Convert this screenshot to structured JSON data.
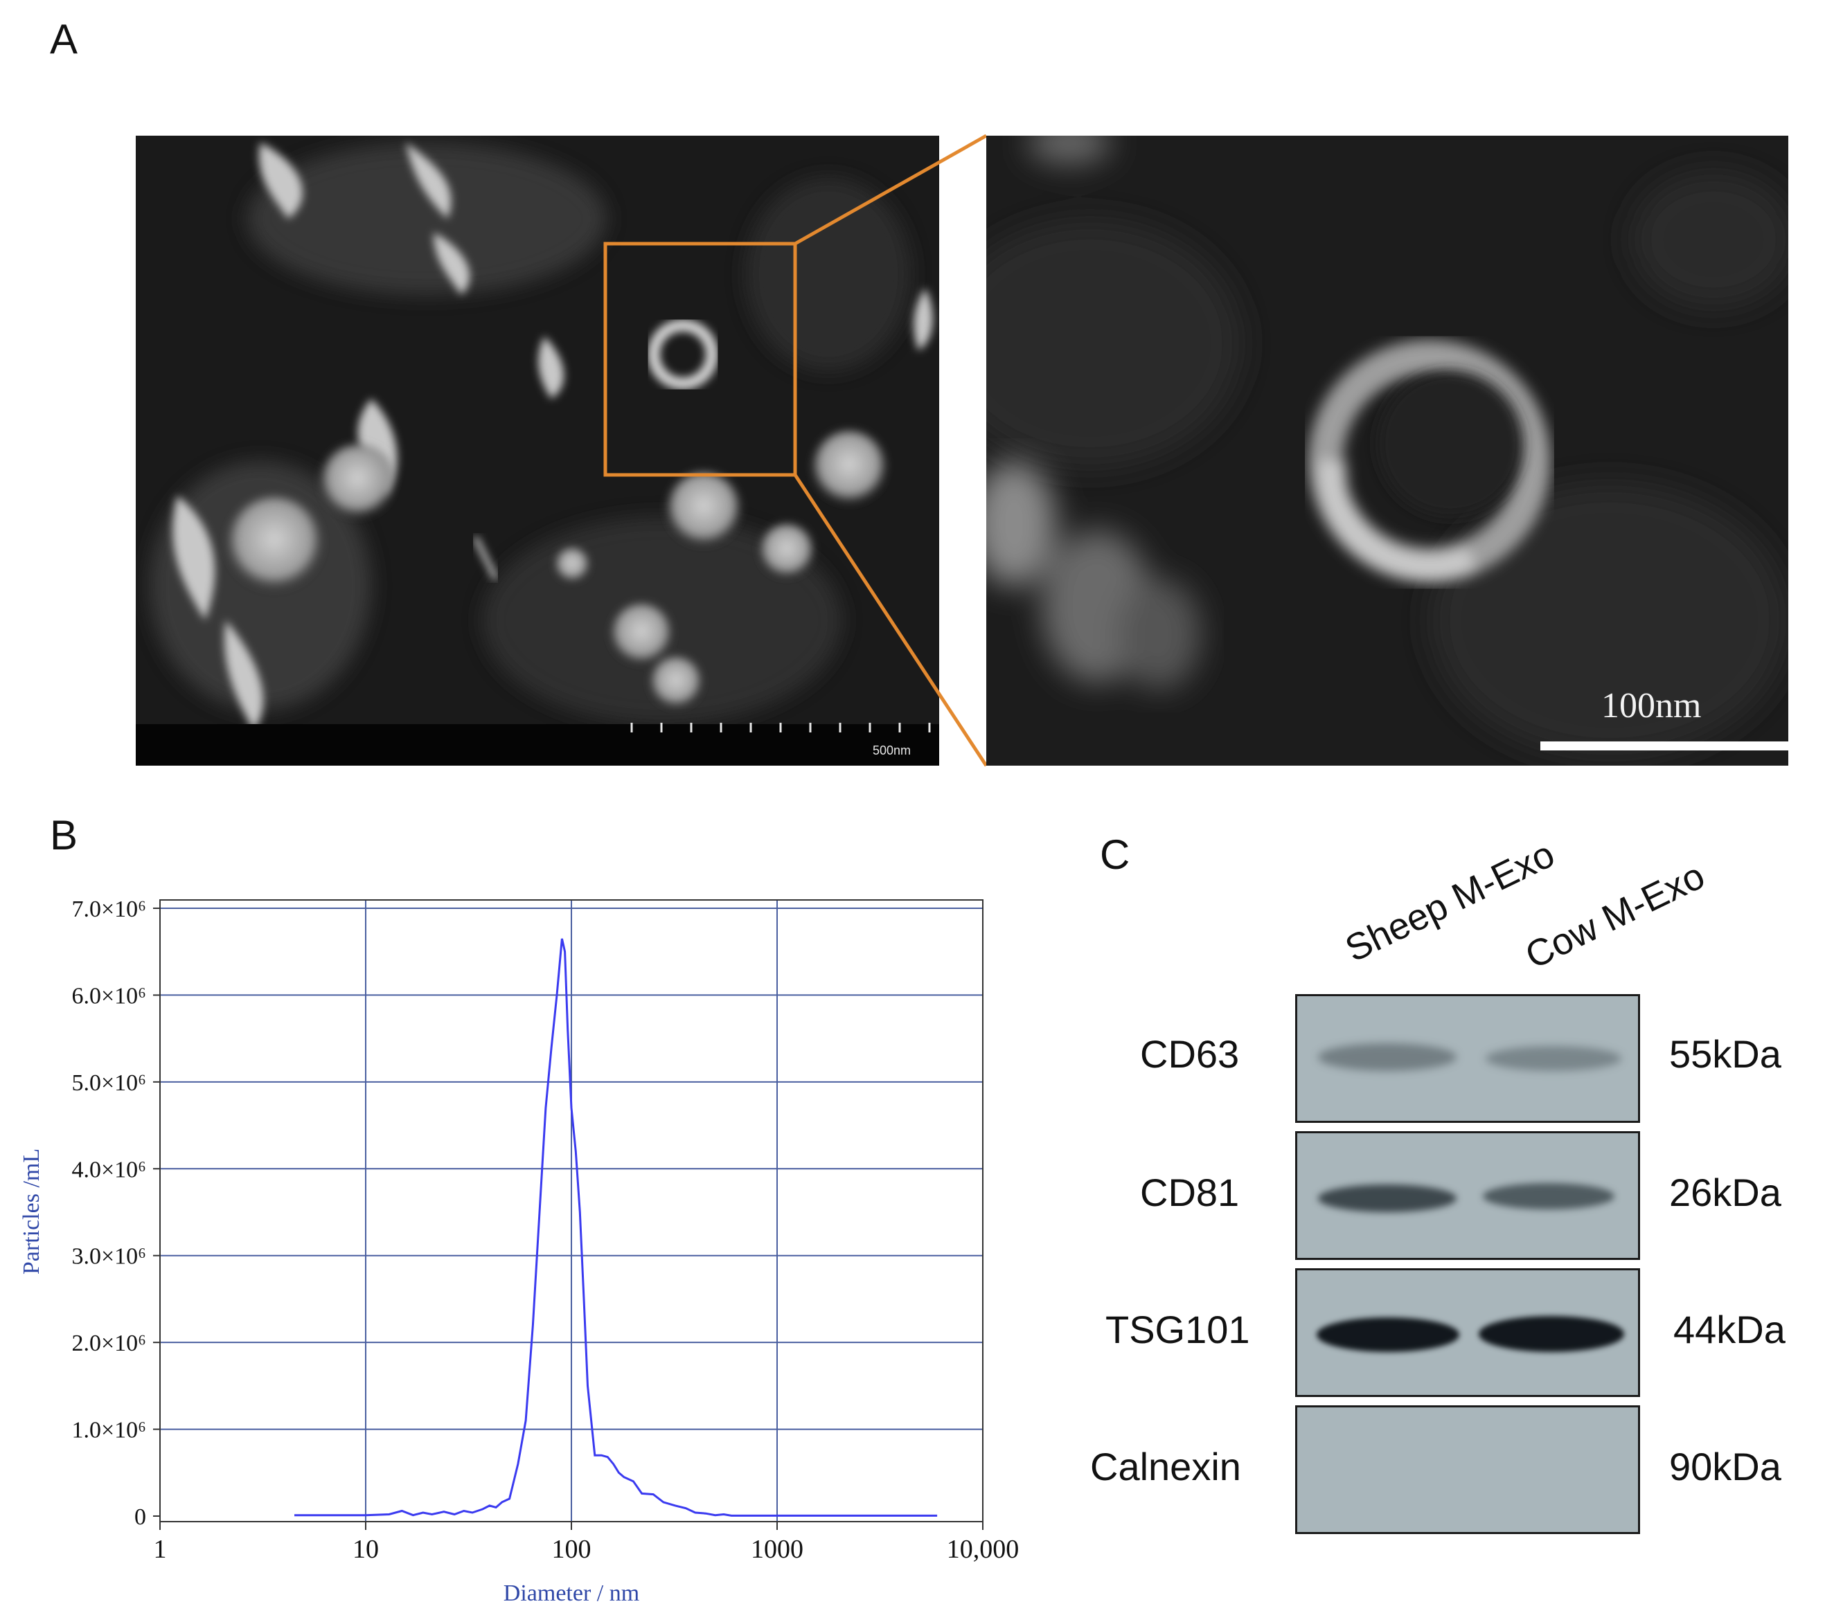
{
  "panels": {
    "a_label": "A",
    "b_label": "B",
    "c_label": "C"
  },
  "em": {
    "overview_scale": "500nm",
    "zoom_scale": "100nm",
    "highlight_color": "#e3892f"
  },
  "chart_data": {
    "type": "line",
    "xlabel": "Diameter / nm",
    "ylabel": "Particles /mL",
    "xscale": "log",
    "xlim": [
      1,
      10000
    ],
    "ylim": [
      0,
      7000000
    ],
    "x_ticks": [
      "1",
      "10",
      "100",
      "1000",
      "10,000"
    ],
    "y_ticks": [
      "0",
      "1.0×10⁶",
      "2.0×10⁶",
      "3.0×10⁶",
      "4.0×10⁶",
      "5.0×10⁶",
      "6.0×10⁶",
      "7.0×10⁶"
    ],
    "grid": true,
    "series_color": "#3a3af0",
    "x": [
      4.5,
      10,
      13,
      15,
      17,
      19,
      21,
      24,
      27,
      30,
      33,
      37,
      40,
      43,
      46,
      50,
      55,
      60,
      65,
      70,
      75,
      80,
      85,
      90,
      93,
      96,
      100,
      105,
      110,
      115,
      120,
      130,
      140,
      150,
      160,
      170,
      180,
      200,
      220,
      250,
      280,
      320,
      360,
      400,
      450,
      500,
      550,
      600,
      800,
      1000,
      2000,
      6000
    ],
    "y": [
      10000,
      10000,
      20000,
      60000,
      10000,
      40000,
      20000,
      50000,
      20000,
      60000,
      40000,
      80000,
      120000,
      100000,
      160000,
      200000,
      600000,
      1100000,
      2200000,
      3500000,
      4700000,
      5400000,
      6000000,
      6650000,
      6500000,
      5600000,
      4700000,
      4200000,
      3500000,
      2500000,
      1500000,
      700000,
      700000,
      680000,
      600000,
      500000,
      450000,
      400000,
      260000,
      250000,
      160000,
      120000,
      90000,
      40000,
      30000,
      10000,
      20000,
      5000,
      5000,
      5000,
      5000,
      5000
    ]
  },
  "blot": {
    "lanes": [
      "Sheep M-Exo",
      "Cow M-Exo"
    ],
    "rows": [
      {
        "protein": "CD63",
        "mw": "55kDa",
        "intensity": [
          0.35,
          0.3
        ]
      },
      {
        "protein": "CD81",
        "mw": "26kDa",
        "intensity": [
          0.65,
          0.55
        ]
      },
      {
        "protein": "TSG101",
        "mw": "44kDa",
        "intensity": [
          0.95,
          0.95
        ]
      },
      {
        "protein": "Calnexin",
        "mw": "90kDa",
        "intensity": [
          0,
          0
        ]
      }
    ]
  }
}
